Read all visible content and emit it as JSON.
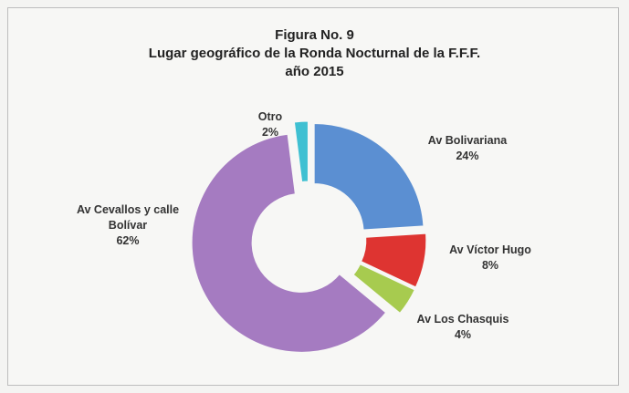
{
  "chart_data": {
    "type": "donut",
    "title": [
      "Figura No. 9",
      "Lugar geográfico de la Ronda Nocturnal de la F.F.F.",
      "año 2015"
    ],
    "categories": [
      "Av Bolivariana",
      "Av Víctor Hugo",
      "Av Los Chasquis",
      "Av Cevallos y calle Bolívar",
      "Otro"
    ],
    "values": [
      24,
      8,
      4,
      62,
      2
    ],
    "value_labels": [
      "24%",
      "8%",
      "4%",
      "62%",
      "2%"
    ],
    "colors": [
      "#5b8fd2",
      "#de3431",
      "#a7cb4f",
      "#a57bc1",
      "#3fc0d2"
    ]
  }
}
